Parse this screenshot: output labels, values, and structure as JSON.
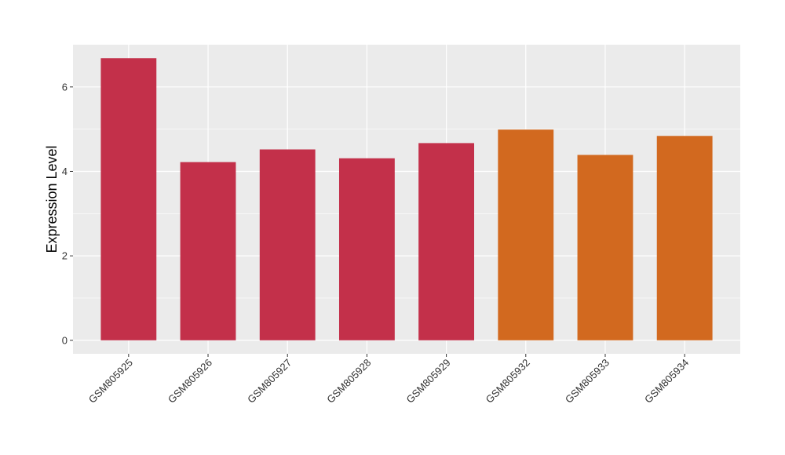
{
  "chart_data": {
    "type": "bar",
    "categories": [
      "GSM805925",
      "GSM805926",
      "GSM805927",
      "GSM805928",
      "GSM805929",
      "GSM805932",
      "GSM805933",
      "GSM805934"
    ],
    "values": [
      6.68,
      4.22,
      4.52,
      4.31,
      4.67,
      4.99,
      4.39,
      4.84
    ],
    "bar_colors": [
      "#C3304A",
      "#C3304A",
      "#C3304A",
      "#C3304A",
      "#C3304A",
      "#D2691F",
      "#D2691F",
      "#D2691F"
    ],
    "title": "",
    "xlabel": "",
    "ylabel": "Expression Level",
    "ylim": [
      -0.32,
      7.0
    ],
    "yticks": [
      0,
      2,
      4,
      6
    ],
    "grid": true,
    "panel_background": "#EBEBEB",
    "grid_color": "#FFFFFF"
  }
}
